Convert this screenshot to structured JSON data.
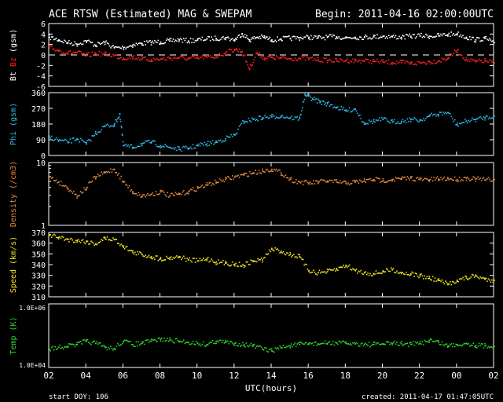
{
  "header": {
    "title": "ACE RTSW (Estimated) MAG & SWEPAM",
    "begin": "Begin: 2011-04-16 02:00:00UTC"
  },
  "footer": {
    "start_doy": "start DOY: 106",
    "created": "created: 2011-04-17 01:47:05UTC",
    "xlabel": "UTC(hours)"
  },
  "colors": {
    "bt": "#ffffff",
    "bz": "#ff2020",
    "phi": "#30b8e8",
    "density": "#e08a40",
    "speed": "#f0e020",
    "temp": "#30d030",
    "frame": "#ffffff",
    "background": "#000000"
  },
  "chart_data": [
    {
      "type": "scatter",
      "name": "mag",
      "ylabel_parts": [
        "Bt",
        "Bz",
        "(gsm)"
      ],
      "ylim": [
        -6,
        6
      ],
      "yticks": [
        -6,
        -4,
        -2,
        0,
        2,
        4,
        6
      ],
      "zero_line": true,
      "xlim": [
        2,
        26
      ],
      "series": [
        {
          "name": "Bt",
          "x": [
            2,
            2.5,
            3,
            3.5,
            4,
            4.5,
            5,
            5.5,
            6,
            6.5,
            7,
            7.5,
            8,
            8.5,
            9,
            9.5,
            10,
            10.5,
            11,
            11.5,
            12,
            12.4,
            12.8,
            13.2,
            13.6,
            14,
            14.5,
            15,
            15.5,
            16,
            16.5,
            17,
            17.5,
            18,
            18.5,
            19,
            19.5,
            20,
            20.5,
            21,
            21.5,
            22,
            22.5,
            23,
            23.5,
            24,
            24.5,
            25,
            25.5,
            26
          ],
          "y": [
            3.5,
            3.0,
            2.5,
            2.2,
            2.8,
            2.0,
            2.5,
            1.5,
            1.5,
            2.0,
            2.3,
            2.5,
            2.6,
            2.8,
            3.0,
            2.8,
            3.0,
            3.2,
            3.3,
            3.4,
            3.0,
            4.2,
            3.0,
            3.5,
            3.5,
            3.0,
            3.2,
            3.3,
            3.4,
            3.5,
            3.4,
            3.5,
            3.6,
            3.4,
            3.5,
            3.5,
            3.6,
            3.7,
            3.6,
            3.5,
            3.7,
            3.8,
            3.7,
            3.8,
            4.0,
            4.2,
            3.5,
            3.0,
            3.3,
            2.5
          ]
        },
        {
          "name": "Bz",
          "x": [
            2,
            2.5,
            3,
            3.5,
            4,
            4.5,
            5,
            5.5,
            6,
            6.5,
            7,
            7.5,
            8,
            8.5,
            9,
            9.5,
            10,
            10.5,
            11,
            11.5,
            12,
            12.4,
            12.8,
            13.2,
            13.6,
            14,
            14.5,
            15,
            15.5,
            16,
            16.5,
            17,
            17.5,
            18,
            18.5,
            19,
            19.5,
            20,
            20.5,
            21,
            21.5,
            22,
            22.5,
            23,
            23.5,
            24,
            24.5,
            25,
            25.5,
            26
          ],
          "y": [
            1.5,
            1.0,
            0.5,
            0.6,
            0.0,
            0.4,
            0.3,
            0.0,
            -0.5,
            -0.3,
            -0.6,
            -0.8,
            -0.7,
            -0.5,
            -0.4,
            -0.6,
            -0.5,
            -0.3,
            -0.2,
            0.5,
            1.2,
            0.8,
            -2.5,
            0.5,
            -0.5,
            -0.3,
            -0.5,
            -0.6,
            -0.5,
            -0.6,
            -0.8,
            -0.9,
            -1.0,
            -0.9,
            -1.0,
            -1.0,
            -1.1,
            -1.2,
            -1.3,
            -1.3,
            -1.5,
            -1.4,
            -1.2,
            -1.0,
            -0.5,
            1.0,
            -0.8,
            -1.2,
            -1.0,
            -1.4
          ]
        }
      ]
    },
    {
      "type": "scatter",
      "name": "phi",
      "ylabel": "Phi (gsm)",
      "ylim": [
        0,
        360
      ],
      "yticks": [
        0,
        90,
        180,
        270,
        360
      ],
      "xlim": [
        2,
        26
      ],
      "series": [
        {
          "name": "Phi",
          "x": [
            2,
            2.5,
            3,
            3.5,
            4,
            4.5,
            5,
            5.5,
            5.8,
            6,
            6.5,
            7,
            7.5,
            8,
            8.5,
            9,
            9.5,
            10,
            10.5,
            11,
            11.5,
            12,
            12.5,
            13,
            13.5,
            14,
            14.5,
            15,
            15.5,
            15.8,
            16.2,
            16.6,
            17,
            17.5,
            18,
            18.5,
            19,
            19.5,
            20,
            20.5,
            21,
            21.5,
            22,
            22.5,
            23,
            23.5,
            24,
            24.5,
            25,
            25.5,
            26
          ],
          "y": [
            110,
            90,
            80,
            100,
            70,
            130,
            170,
            180,
            240,
            60,
            50,
            70,
            80,
            60,
            50,
            40,
            45,
            60,
            70,
            80,
            100,
            120,
            200,
            210,
            220,
            225,
            230,
            220,
            215,
            350,
            330,
            310,
            300,
            280,
            260,
            270,
            190,
            200,
            210,
            195,
            200,
            210,
            205,
            230,
            240,
            250,
            180,
            200,
            210,
            220,
            230
          ]
        }
      ]
    },
    {
      "type": "scatter",
      "name": "density",
      "ylabel": "Density (/cm3)",
      "yscale": "log",
      "ylim": [
        1,
        10
      ],
      "yticks": [
        1,
        10
      ],
      "xlim": [
        2,
        26
      ],
      "series": [
        {
          "name": "Density",
          "x": [
            2,
            2.5,
            3,
            3.5,
            4,
            4.5,
            5,
            5.5,
            6,
            6.5,
            7,
            7.5,
            8,
            8.5,
            9,
            9.5,
            10,
            10.5,
            11,
            11.5,
            12,
            12.5,
            13,
            13.5,
            14,
            14.5,
            15,
            15.5,
            16,
            16.5,
            17,
            17.5,
            18,
            18.5,
            19,
            19.5,
            20,
            20.5,
            21,
            21.5,
            22,
            22.5,
            23,
            23.5,
            24,
            24.5,
            25,
            25.5,
            26
          ],
          "y": [
            6,
            5,
            4,
            3,
            4,
            6,
            7,
            8,
            5,
            3.5,
            3,
            3.2,
            3.5,
            3,
            3.2,
            3.5,
            4,
            4.5,
            5,
            5.5,
            6,
            6.5,
            7,
            7.5,
            8,
            7,
            5.5,
            5,
            4.8,
            5,
            5.2,
            5,
            4.8,
            5,
            5.2,
            5.5,
            5.3,
            5.5,
            5.6,
            5.8,
            5.5,
            5.4,
            5.6,
            5.7,
            5.5,
            5.8,
            5.6,
            5.4,
            5.5
          ]
        }
      ]
    },
    {
      "type": "scatter",
      "name": "speed",
      "ylabel": "Speed (km/s)",
      "ylim": [
        310,
        370
      ],
      "yticks": [
        310,
        320,
        330,
        340,
        350,
        360,
        370
      ],
      "xlim": [
        2,
        26
      ],
      "series": [
        {
          "name": "Speed",
          "x": [
            2,
            2.5,
            3,
            3.5,
            4,
            4.5,
            5,
            5.5,
            6,
            6.5,
            7,
            7.5,
            8,
            8.5,
            9,
            9.5,
            10,
            10.5,
            11,
            11.5,
            12,
            12.5,
            13,
            13.5,
            14,
            14.5,
            15,
            15.5,
            16,
            16.5,
            17,
            17.5,
            18,
            18.5,
            19,
            19.5,
            20,
            20.5,
            21,
            21.5,
            22,
            22.5,
            23,
            23.5,
            24,
            24.5,
            25,
            25.5,
            26
          ],
          "y": [
            368,
            366,
            364,
            363,
            362,
            360,
            365,
            364,
            358,
            352,
            350,
            348,
            346,
            347,
            348,
            345,
            344,
            346,
            343,
            342,
            341,
            340,
            344,
            345,
            355,
            353,
            350,
            348,
            335,
            333,
            334,
            336,
            340,
            335,
            333,
            332,
            334,
            336,
            333,
            332,
            330,
            328,
            326,
            322,
            326,
            328,
            330,
            327,
            326
          ]
        }
      ]
    },
    {
      "type": "scatter",
      "name": "temp",
      "ylabel": "Temp (K)",
      "yscale": "log",
      "ylim": [
        10000,
        1000000
      ],
      "ytick_labels": [
        "1.0E+06",
        "1.0E+04"
      ],
      "xlim": [
        2,
        26
      ],
      "series": [
        {
          "name": "Temp",
          "x": [
            2,
            2.5,
            3,
            3.5,
            4,
            4.5,
            5,
            5.5,
            6,
            6.5,
            7,
            7.5,
            8,
            8.5,
            9,
            9.5,
            10,
            10.5,
            11,
            11.5,
            12,
            12.5,
            13,
            13.5,
            14,
            14.5,
            15,
            15.5,
            16,
            16.5,
            17,
            17.5,
            18,
            18.5,
            19,
            19.5,
            20,
            20.5,
            21,
            21.5,
            22,
            22.5,
            23,
            23.5,
            24,
            24.5,
            25,
            25.5,
            26
          ],
          "y": [
            40000,
            45000,
            50000,
            55000,
            70000,
            60000,
            45000,
            40000,
            70000,
            55000,
            60000,
            70000,
            80000,
            75000,
            70000,
            65000,
            60000,
            55000,
            70000,
            65000,
            60000,
            55000,
            50000,
            40000,
            35000,
            45000,
            50000,
            55000,
            60000,
            58000,
            60000,
            62000,
            60000,
            58000,
            56000,
            55000,
            58000,
            60000,
            58000,
            56000,
            60000,
            75000,
            65000,
            50000,
            55000,
            60000,
            52000,
            50000,
            48000
          ]
        }
      ]
    }
  ],
  "xaxis": {
    "tick_labels": [
      "02",
      "04",
      "06",
      "08",
      "10",
      "12",
      "14",
      "16",
      "18",
      "20",
      "22",
      "00",
      "02"
    ],
    "tick_hours": [
      2,
      4,
      6,
      8,
      10,
      12,
      14,
      16,
      18,
      20,
      22,
      24,
      26
    ]
  }
}
